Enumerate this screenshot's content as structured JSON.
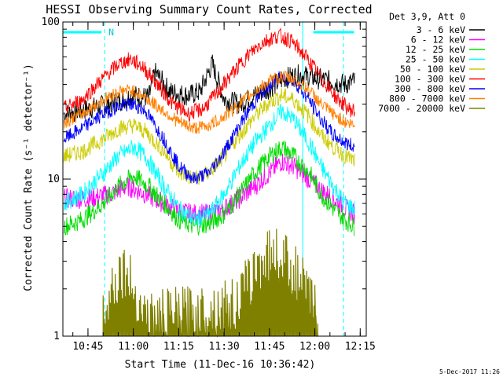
{
  "chart_data": {
    "type": "line",
    "title": "HESSI Observing Summary Count Rates, Corrected",
    "ylabel": "Corrected Count Rate (s⁻¹ detector⁻¹)",
    "xlabel": "Start Time (11-Dec-16 10:36:42)",
    "y_scale": "log",
    "ylim": [
      1,
      100
    ],
    "xlim": [
      "10:36:42",
      "12:17:00"
    ],
    "y_ticks": [
      "1",
      "10",
      "100"
    ],
    "x_ticks": [
      "10:45",
      "11:00",
      "11:15",
      "11:30",
      "11:45",
      "12:00",
      "12:15"
    ],
    "timestamp": "5-Dec-2017 11:26",
    "legend_header": "Det 3,9, Att 0",
    "markers": {
      "night_times": [
        "10:50:30",
        "12:09:30"
      ],
      "saa_times": [
        "11:56:00"
      ],
      "flag_label": "N",
      "flag_segments": [
        [
          "10:36:42",
          "10:49:30"
        ],
        [
          "11:59:30",
          "12:13:00"
        ]
      ]
    },
    "series": [
      {
        "name": "3 - 6 keV",
        "color": "#000000",
        "points": [
          [
            "10:37",
            26
          ],
          [
            "10:45",
            28
          ],
          [
            "10:52",
            30
          ],
          [
            "11:00",
            34
          ],
          [
            "11:05",
            33
          ],
          [
            "11:07",
            48
          ],
          [
            "11:12",
            36
          ],
          [
            "11:18",
            34
          ],
          [
            "11:22",
            36
          ],
          [
            "11:26",
            54
          ],
          [
            "11:30",
            32
          ],
          [
            "11:35",
            30
          ],
          [
            "11:40",
            34
          ],
          [
            "11:45",
            38
          ],
          [
            "11:50",
            44
          ],
          [
            "11:55",
            46
          ],
          [
            "12:00",
            44
          ],
          [
            "12:05",
            42
          ],
          [
            "12:10",
            40
          ],
          [
            "12:13",
            42
          ]
        ]
      },
      {
        "name": "6 - 12 keV",
        "color": "#ff00ff",
        "points": [
          [
            "10:37",
            7.5
          ],
          [
            "10:45",
            7.5
          ],
          [
            "10:52",
            8
          ],
          [
            "10:58",
            9
          ],
          [
            "11:03",
            8.2
          ],
          [
            "11:10",
            7
          ],
          [
            "11:15",
            6.2
          ],
          [
            "11:20",
            6
          ],
          [
            "11:25",
            6
          ],
          [
            "11:30",
            6.5
          ],
          [
            "11:35",
            7.5
          ],
          [
            "11:40",
            9
          ],
          [
            "11:45",
            11
          ],
          [
            "11:49",
            13
          ],
          [
            "11:53",
            12
          ],
          [
            "11:58",
            10
          ],
          [
            "12:02",
            8.5
          ],
          [
            "12:06",
            7.5
          ],
          [
            "12:10",
            6.5
          ],
          [
            "12:13",
            6
          ]
        ]
      },
      {
        "name": "12 - 25 keV",
        "color": "#00dd00",
        "points": [
          [
            "10:37",
            5
          ],
          [
            "10:43",
            5.5
          ],
          [
            "10:50",
            7
          ],
          [
            "10:55",
            9
          ],
          [
            "11:00",
            10.5
          ],
          [
            "11:05",
            9
          ],
          [
            "11:10",
            7
          ],
          [
            "11:15",
            5.5
          ],
          [
            "11:20",
            5
          ],
          [
            "11:25",
            5.2
          ],
          [
            "11:30",
            6
          ],
          [
            "11:35",
            8
          ],
          [
            "11:40",
            11
          ],
          [
            "11:45",
            14
          ],
          [
            "11:49",
            16
          ],
          [
            "11:53",
            14
          ],
          [
            "11:58",
            11
          ],
          [
            "12:02",
            8
          ],
          [
            "12:06",
            6.5
          ],
          [
            "12:10",
            5.5
          ],
          [
            "12:13",
            5
          ]
        ]
      },
      {
        "name": "25 - 50 keV",
        "color": "#00ffff",
        "points": [
          [
            "10:37",
            7
          ],
          [
            "10:43",
            8
          ],
          [
            "10:50",
            11
          ],
          [
            "10:55",
            14
          ],
          [
            "11:00",
            16
          ],
          [
            "11:04",
            14
          ],
          [
            "11:10",
            9
          ],
          [
            "11:15",
            6.5
          ],
          [
            "11:20",
            5.5
          ],
          [
            "11:25",
            6
          ],
          [
            "11:30",
            8
          ],
          [
            "11:35",
            12
          ],
          [
            "11:40",
            17
          ],
          [
            "11:45",
            22
          ],
          [
            "11:49",
            27
          ],
          [
            "11:53",
            24
          ],
          [
            "11:58",
            17
          ],
          [
            "12:02",
            12
          ],
          [
            "12:06",
            9
          ],
          [
            "12:10",
            7
          ],
          [
            "12:13",
            6.5
          ]
        ]
      },
      {
        "name": "50 - 100 keV",
        "color": "#cccc00",
        "points": [
          [
            "10:37",
            14
          ],
          [
            "10:43",
            15
          ],
          [
            "10:50",
            18
          ],
          [
            "10:55",
            21
          ],
          [
            "11:00",
            22
          ],
          [
            "11:04",
            20
          ],
          [
            "11:10",
            15
          ],
          [
            "11:15",
            11
          ],
          [
            "11:20",
            10
          ],
          [
            "11:25",
            11
          ],
          [
            "11:30",
            14
          ],
          [
            "11:35",
            19
          ],
          [
            "11:40",
            25
          ],
          [
            "11:45",
            31
          ],
          [
            "11:49",
            34
          ],
          [
            "11:53",
            32
          ],
          [
            "11:58",
            25
          ],
          [
            "12:02",
            19
          ],
          [
            "12:06",
            16
          ],
          [
            "12:10",
            14
          ],
          [
            "12:13",
            13
          ]
        ]
      },
      {
        "name": "100 - 300 keV",
        "color": "#ff0000",
        "points": [
          [
            "10:37",
            28
          ],
          [
            "10:43",
            32
          ],
          [
            "10:50",
            44
          ],
          [
            "10:55",
            54
          ],
          [
            "10:59",
            58
          ],
          [
            "11:03",
            52
          ],
          [
            "11:08",
            40
          ],
          [
            "11:13",
            30
          ],
          [
            "11:18",
            26
          ],
          [
            "11:23",
            28
          ],
          [
            "11:28",
            36
          ],
          [
            "11:33",
            48
          ],
          [
            "11:38",
            62
          ],
          [
            "11:43",
            75
          ],
          [
            "11:48",
            82
          ],
          [
            "11:52",
            76
          ],
          [
            "11:57",
            60
          ],
          [
            "12:02",
            44
          ],
          [
            "12:07",
            33
          ],
          [
            "12:11",
            28
          ],
          [
            "12:13",
            27
          ]
        ]
      },
      {
        "name": "300 - 800 keV",
        "color": "#0000ff",
        "points": [
          [
            "10:37",
            18
          ],
          [
            "10:43",
            21
          ],
          [
            "10:50",
            26
          ],
          [
            "10:55",
            29
          ],
          [
            "11:00",
            30
          ],
          [
            "11:04",
            27
          ],
          [
            "11:10",
            18
          ],
          [
            "11:15",
            12
          ],
          [
            "11:20",
            10
          ],
          [
            "11:25",
            11
          ],
          [
            "11:30",
            15
          ],
          [
            "11:35",
            22
          ],
          [
            "11:40",
            31
          ],
          [
            "11:45",
            40
          ],
          [
            "11:49",
            45
          ],
          [
            "11:53",
            42
          ],
          [
            "11:58",
            32
          ],
          [
            "12:02",
            24
          ],
          [
            "12:06",
            19
          ],
          [
            "12:10",
            17
          ],
          [
            "12:13",
            16
          ]
        ]
      },
      {
        "name": "800 - 7000 keV",
        "color": "#ff8000",
        "points": [
          [
            "10:37",
            23
          ],
          [
            "10:43",
            26
          ],
          [
            "10:50",
            32
          ],
          [
            "10:55",
            36
          ],
          [
            "10:59",
            37
          ],
          [
            "11:03",
            34
          ],
          [
            "11:09",
            28
          ],
          [
            "11:15",
            23
          ],
          [
            "11:20",
            21
          ],
          [
            "11:25",
            22
          ],
          [
            "11:30",
            25
          ],
          [
            "11:35",
            30
          ],
          [
            "11:40",
            36
          ],
          [
            "11:45",
            42
          ],
          [
            "11:49",
            45
          ],
          [
            "11:53",
            43
          ],
          [
            "11:58",
            37
          ],
          [
            "12:02",
            30
          ],
          [
            "12:06",
            26
          ],
          [
            "12:10",
            23
          ],
          [
            "12:13",
            22
          ]
        ]
      },
      {
        "name": "7000 - 20000 keV",
        "color": "#808000",
        "points": [
          [
            "10:50",
            1.5
          ],
          [
            "10:54",
            2.3
          ],
          [
            "10:57",
            2.7
          ],
          [
            "11:00",
            2
          ],
          [
            "11:03",
            1.5
          ],
          [
            "11:06",
            1.3
          ],
          [
            "11:34",
            1.6
          ],
          [
            "11:38",
            2.2
          ],
          [
            "11:42",
            3
          ],
          [
            "11:46",
            3.5
          ],
          [
            "11:50",
            3.2
          ],
          [
            "11:54",
            2.5
          ],
          [
            "11:58",
            1.8
          ],
          [
            "12:01",
            1.4
          ]
        ]
      }
    ]
  }
}
